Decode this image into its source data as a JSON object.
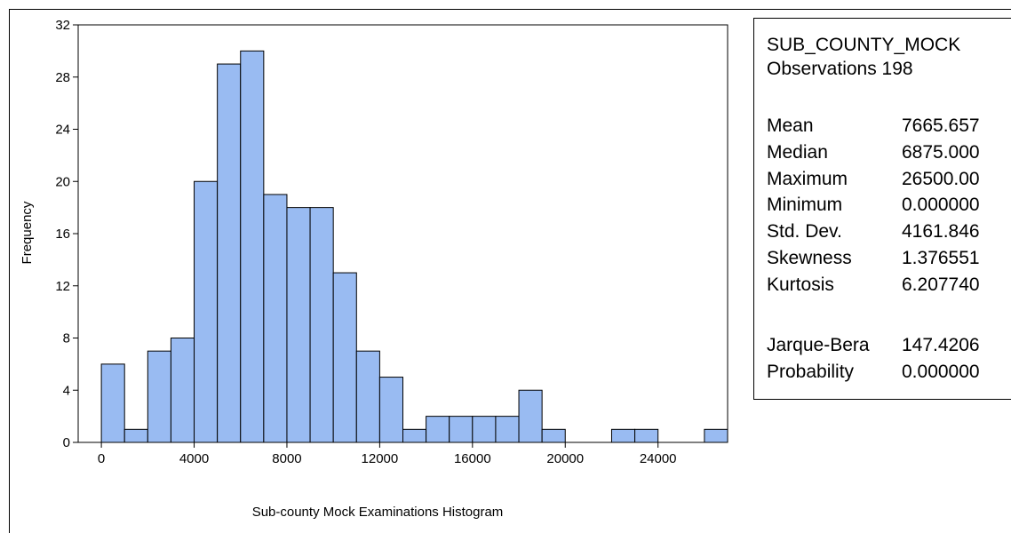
{
  "chart_data": {
    "type": "bar",
    "title": "",
    "xlabel": "Sub-county Mock Examinations Histogram",
    "ylabel": "Frequency",
    "bin_width": 1000,
    "bin_starts": [
      0,
      1000,
      2000,
      3000,
      4000,
      5000,
      6000,
      7000,
      8000,
      9000,
      10000,
      11000,
      12000,
      13000,
      14000,
      15000,
      16000,
      17000,
      18000,
      19000,
      20000,
      21000,
      22000,
      23000,
      24000,
      25000,
      26000
    ],
    "values": [
      6,
      1,
      7,
      8,
      20,
      29,
      30,
      19,
      18,
      18,
      13,
      7,
      5,
      1,
      2,
      2,
      2,
      2,
      4,
      1,
      0,
      0,
      1,
      1,
      0,
      0,
      1
    ],
    "xlim": [
      -1000,
      27000
    ],
    "ylim": [
      0,
      32
    ],
    "x_ticks": [
      "0",
      "4000",
      "8000",
      "12000",
      "16000",
      "20000",
      "24000"
    ],
    "x_tick_values": [
      0,
      4000,
      8000,
      12000,
      16000,
      20000,
      24000
    ],
    "y_ticks": [
      "0",
      "4",
      "8",
      "12",
      "16",
      "20",
      "24",
      "28",
      "32"
    ],
    "y_tick_values": [
      0,
      4,
      8,
      12,
      16,
      20,
      24,
      28,
      32
    ],
    "bar_color": "#99bbf2",
    "grid": false,
    "legend": "none"
  },
  "stats": {
    "series_name": "SUB_COUNTY_MOCK",
    "observations": "Observations 198",
    "rows_a": [
      {
        "label": "Mean",
        "value": "7665.657"
      },
      {
        "label": "Median",
        "value": "6875.000"
      },
      {
        "label": "Maximum",
        "value": "26500.00"
      },
      {
        "label": "Minimum",
        "value": "0.000000"
      },
      {
        "label": "Std. Dev.",
        "value": "4161.846"
      },
      {
        "label": "Skewness",
        "value": "1.376551"
      },
      {
        "label": "Kurtosis",
        "value": "6.207740"
      }
    ],
    "rows_b": [
      {
        "label": "Jarque-Bera",
        "value": "147.4206"
      },
      {
        "label": "Probability",
        "value": "0.000000"
      }
    ]
  }
}
